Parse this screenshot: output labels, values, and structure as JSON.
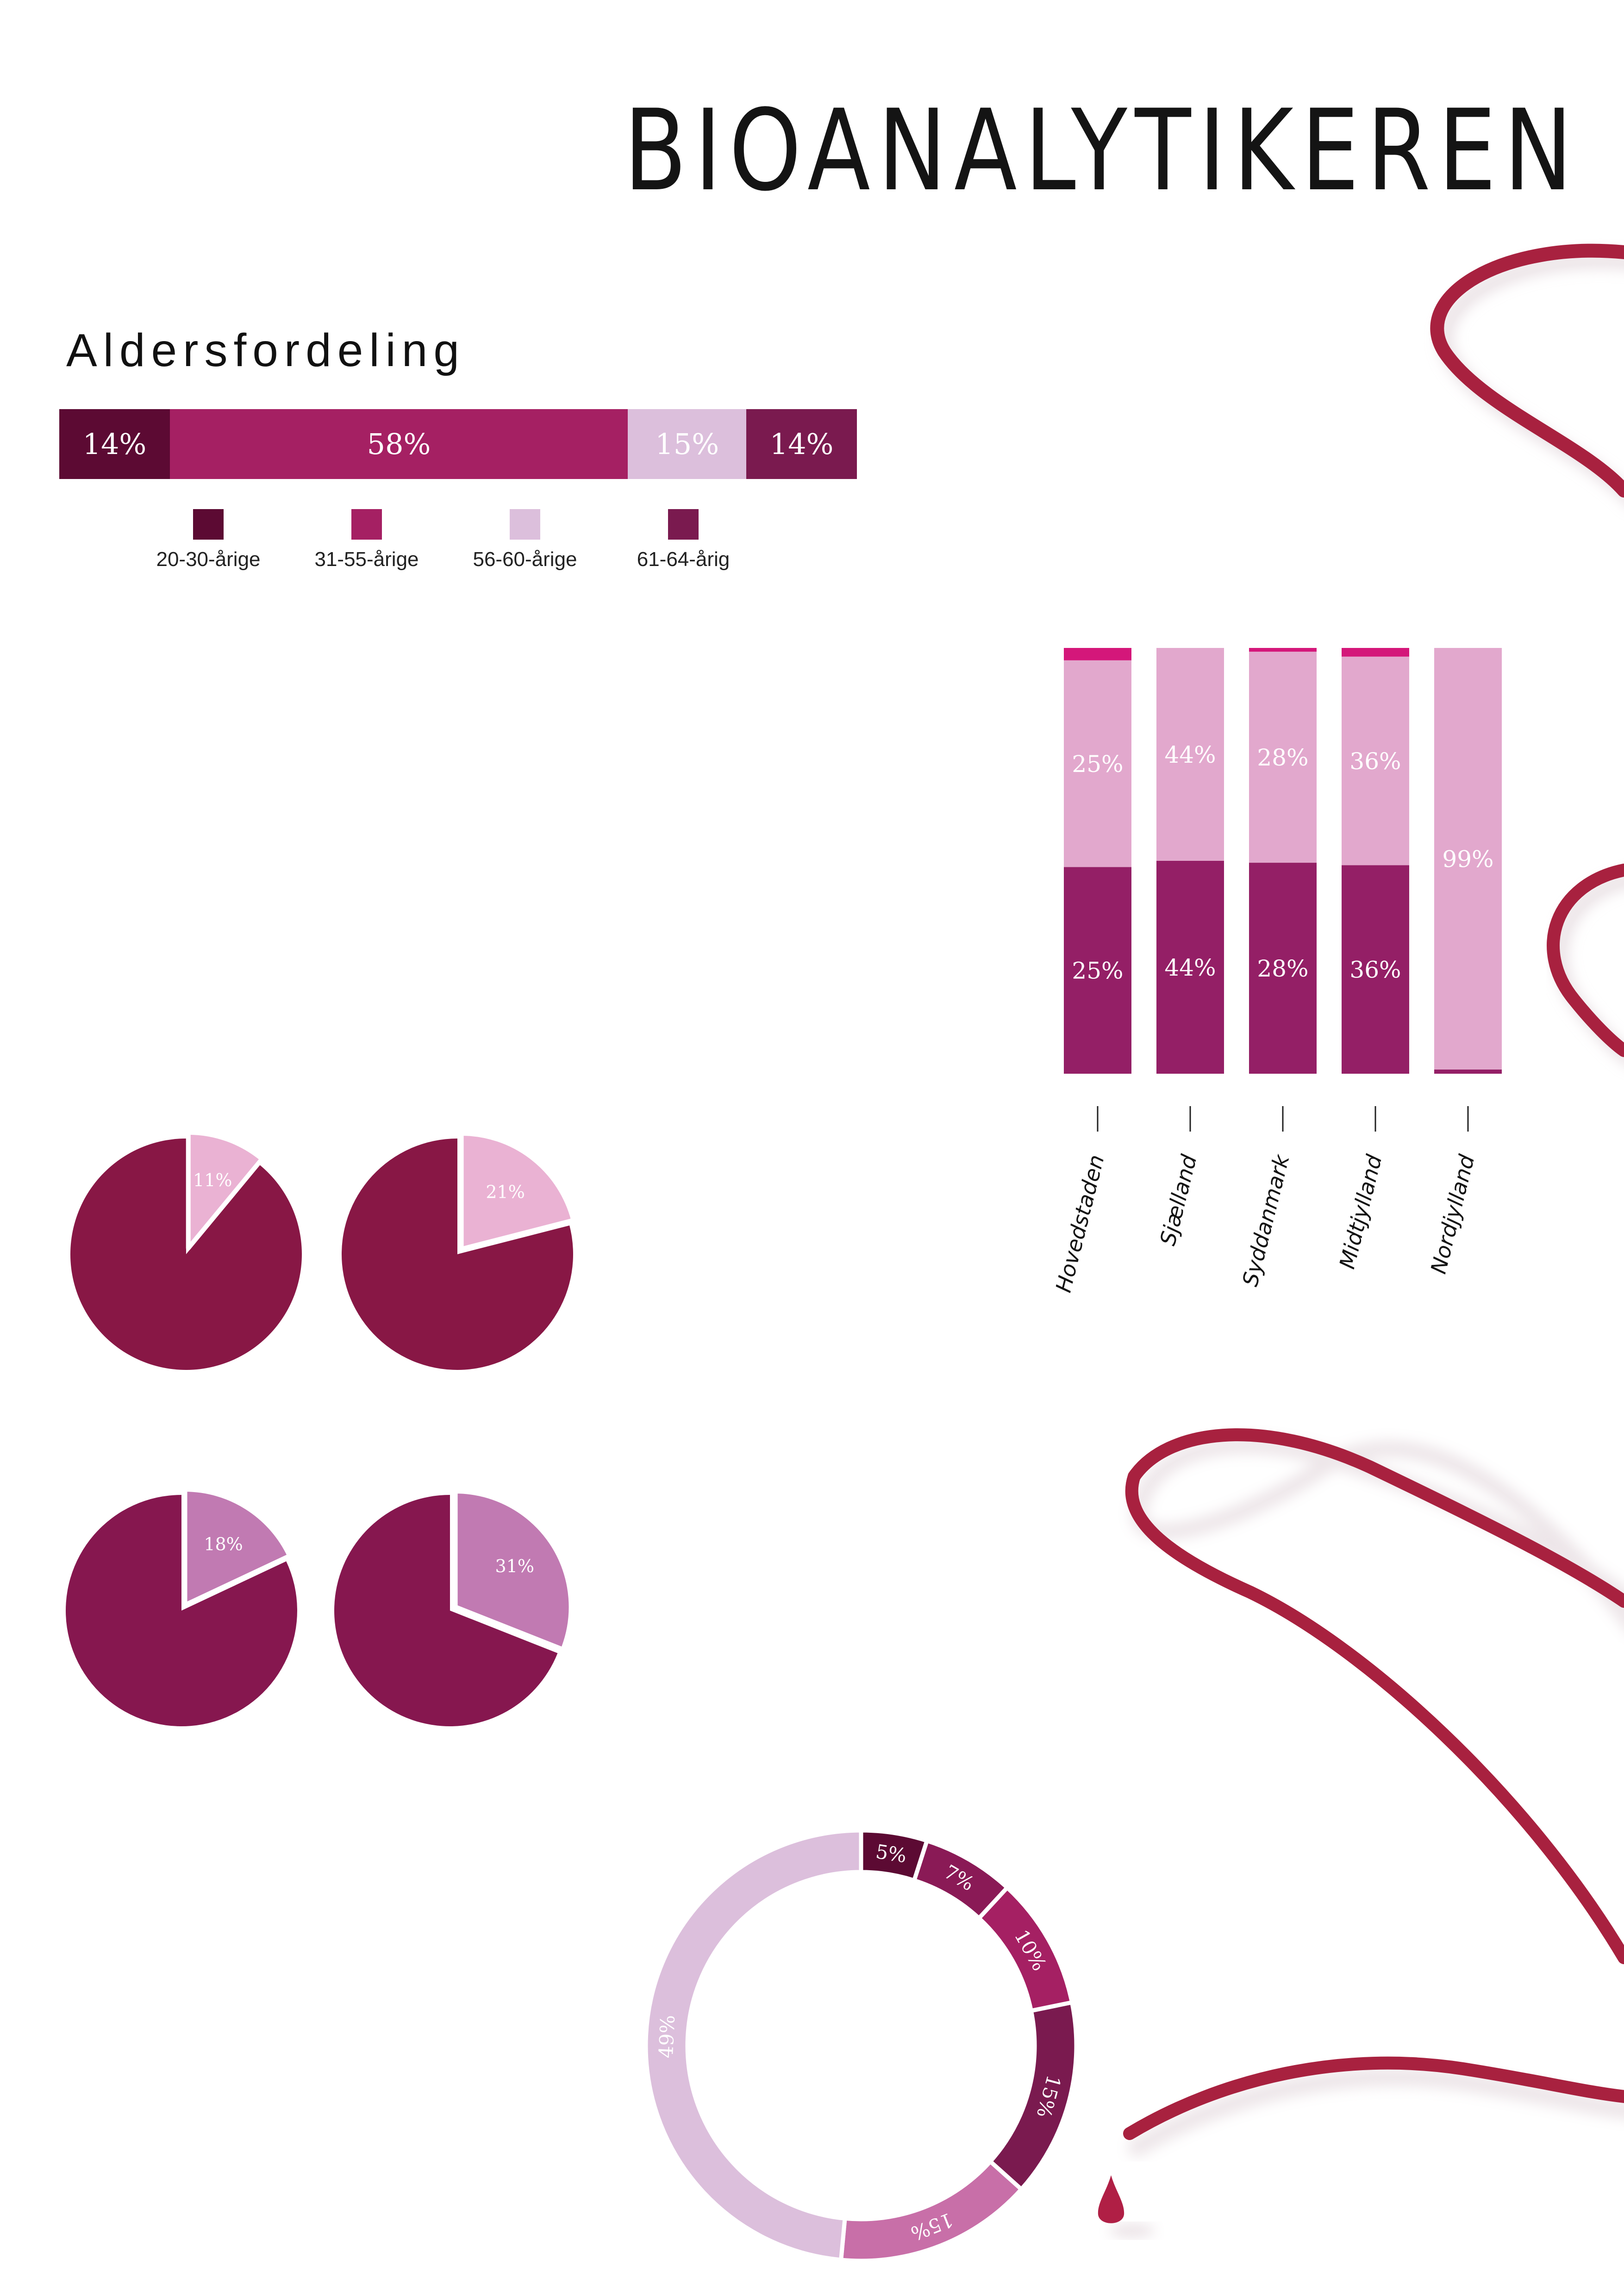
{
  "title": "BIOANALYTIKEREN",
  "age_section": {
    "heading": "Aldersfordeling"
  },
  "colors": {
    "ribbon": "#a8213f",
    "dark": "#5c0a33",
    "magenta": "#a52063",
    "light": "#dcbfdc",
    "plum": "#7a1a4f",
    "stack_top": "#d4177a",
    "stack_mid": "#e2a8cd",
    "stack_bottom": "#941f66",
    "pie_main_a": "#881745",
    "pie_main_b": "#86174f",
    "pie_light_a": "#eab2d3",
    "pie_light_b": "#c17ab2"
  },
  "chart_data": [
    {
      "type": "bar",
      "orientation": "horizontal-stacked",
      "title": "Aldersfordeling",
      "series": [
        {
          "name": "20-30-årige",
          "value": 14,
          "label": "14%",
          "color": "#5c0a33"
        },
        {
          "name": "31-55-årige",
          "value": 58,
          "label": "58%",
          "color": "#a52063"
        },
        {
          "name": "56-60-årige",
          "value": 15,
          "label": "15%",
          "color": "#dcbfdc"
        },
        {
          "name": "61-64-årig",
          "value": 14,
          "label": "14%",
          "color": "#7a1a4f"
        }
      ]
    },
    {
      "type": "bar",
      "orientation": "vertical-stacked",
      "categories": [
        "Hovedstaden",
        "Sjælland",
        "Syddanmark",
        "Midtjylland",
        "Nordjylland"
      ],
      "series": [
        {
          "values": [
            25,
            44,
            28,
            36,
            1
          ],
          "labels": [
            "25%",
            "44%",
            "28%",
            "36%",
            ""
          ],
          "color": "#941f66"
        },
        {
          "values": [
            25,
            44,
            28,
            36,
            99
          ],
          "labels": [
            "25%",
            "44%",
            "28%",
            "36%",
            "99%"
          ],
          "color": "#e2a8cd"
        },
        {
          "values": [
            1.5,
            0,
            0.5,
            1.5,
            0
          ],
          "labels": [
            "",
            "",
            "",
            "",
            ""
          ],
          "color": "#d4177a"
        }
      ],
      "ylim": [
        0,
        100
      ]
    },
    {
      "type": "pie",
      "pies": [
        {
          "highlight": 11,
          "label": "11%",
          "main_color": "#881745",
          "slice_color": "#eab2d3"
        },
        {
          "highlight": 21,
          "label": "21%",
          "main_color": "#881745",
          "slice_color": "#eab2d3"
        },
        {
          "highlight": 18,
          "label": "18%",
          "main_color": "#86174f",
          "slice_color": "#c17ab2"
        },
        {
          "highlight": 31,
          "label": "31%",
          "main_color": "#86174f",
          "slice_color": "#c17ab2"
        }
      ]
    },
    {
      "type": "pie",
      "style": "donut",
      "values": [
        5,
        7,
        10,
        15,
        15,
        49
      ],
      "labels": [
        "5%",
        "7%",
        "10%",
        "15%",
        "15%",
        "49%"
      ],
      "colors": [
        "#5c0a33",
        "#8a1a56",
        "#a52063",
        "#7a1a4f",
        "#c86fa8",
        "#dcbfdc"
      ]
    }
  ]
}
